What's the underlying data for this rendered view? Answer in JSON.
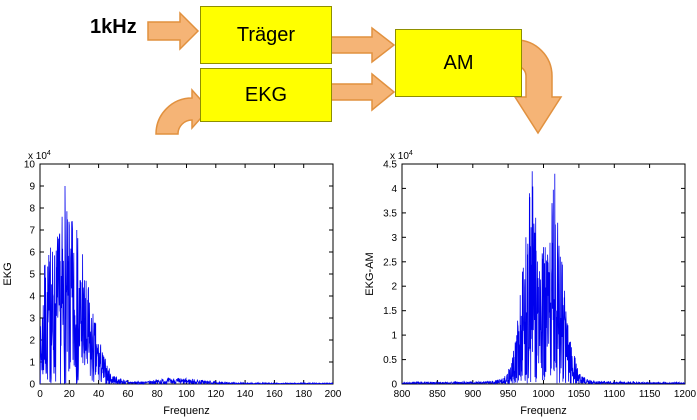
{
  "theme": {
    "bg": "#ffffff",
    "text": "#000000",
    "box-fill": "#ffff00",
    "box-border": "#8f8f00",
    "arrow-fill": "#f5b476",
    "arrow-border": "#e1913f"
  },
  "diagram": {
    "input_label": "1kHz",
    "blocks": {
      "traeger": "Träger",
      "ekg": "EKG",
      "am": "AM"
    }
  },
  "chart_data": [
    {
      "type": "line",
      "name": "ekg-spectrum",
      "title": "",
      "xlabel": "Frequenz",
      "ylabel": "EKG",
      "scale_label": "x 10",
      "scale_power": "4",
      "x_range": [
        0,
        200
      ],
      "y_range": [
        0,
        10
      ],
      "x_ticks": [
        0,
        20,
        40,
        60,
        80,
        100,
        120,
        140,
        160,
        180,
        200
      ],
      "y_ticks": [
        0,
        1,
        2,
        3,
        4,
        5,
        6,
        7,
        8,
        9,
        10
      ],
      "line_color": "#0000ee",
      "samples": 1100,
      "seed": 7,
      "noise_exp": 1.3,
      "floor": 0.02,
      "envelope": [
        [
          0,
          2.2
        ],
        [
          2,
          5.0
        ],
        [
          4,
          5.8
        ],
        [
          7,
          6.3
        ],
        [
          10,
          6.6
        ],
        [
          13,
          7.0
        ],
        [
          15,
          7.6
        ],
        [
          17,
          9.0
        ],
        [
          19,
          7.4
        ],
        [
          22,
          7.5
        ],
        [
          25,
          7.0
        ],
        [
          28,
          6.2
        ],
        [
          31,
          5.0
        ],
        [
          34,
          4.0
        ],
        [
          37,
          3.1
        ],
        [
          40,
          2.3
        ],
        [
          43,
          1.5
        ],
        [
          46,
          0.9
        ],
        [
          49,
          0.5
        ],
        [
          53,
          0.3
        ],
        [
          58,
          0.18
        ],
        [
          64,
          0.12
        ],
        [
          72,
          0.12
        ],
        [
          80,
          0.22
        ],
        [
          88,
          0.28
        ],
        [
          96,
          0.27
        ],
        [
          104,
          0.24
        ],
        [
          112,
          0.18
        ],
        [
          118,
          0.12
        ],
        [
          126,
          0.08
        ],
        [
          140,
          0.06
        ],
        [
          160,
          0.05
        ],
        [
          180,
          0.05
        ],
        [
          200,
          0.05
        ]
      ],
      "peaks": [
        [
          17,
          9.0
        ],
        [
          15,
          7.6
        ],
        [
          22,
          7.4
        ],
        [
          12,
          6.7
        ],
        [
          25,
          7.0
        ],
        [
          7,
          6.2
        ],
        [
          3,
          5.4
        ],
        [
          29,
          5.9
        ],
        [
          33,
          4.4
        ],
        [
          20,
          7.2
        ]
      ]
    },
    {
      "type": "line",
      "name": "ekg-am-spectrum",
      "title": "",
      "xlabel": "Frequenz",
      "ylabel": "EKG-AM",
      "scale_label": "x 10",
      "scale_power": "4",
      "x_range": [
        800,
        1200
      ],
      "y_range": [
        0,
        4.5
      ],
      "x_ticks": [
        800,
        850,
        900,
        950,
        1000,
        1050,
        1100,
        1150,
        1200
      ],
      "y_ticks": [
        0,
        0.5,
        1,
        1.5,
        2,
        2.5,
        3,
        3.5,
        4,
        4.5
      ],
      "line_color": "#0000ee",
      "samples": 1300,
      "seed": 13,
      "noise_exp": 1.3,
      "floor": 0.015,
      "envelope": [
        [
          800,
          0.04
        ],
        [
          860,
          0.04
        ],
        [
          900,
          0.05
        ],
        [
          925,
          0.06
        ],
        [
          938,
          0.1
        ],
        [
          948,
          0.2
        ],
        [
          956,
          0.55
        ],
        [
          962,
          1.2
        ],
        [
          967,
          1.9
        ],
        [
          972,
          2.6
        ],
        [
          977,
          3.2
        ],
        [
          981,
          3.9
        ],
        [
          984,
          4.35
        ],
        [
          988,
          3.6
        ],
        [
          993,
          3.0
        ],
        [
          1000,
          2.7
        ],
        [
          1006,
          3.0
        ],
        [
          1011,
          3.6
        ],
        [
          1016,
          4.3
        ],
        [
          1020,
          3.6
        ],
        [
          1025,
          2.7
        ],
        [
          1030,
          2.0
        ],
        [
          1036,
          1.3
        ],
        [
          1042,
          0.7
        ],
        [
          1048,
          0.35
        ],
        [
          1054,
          0.18
        ],
        [
          1062,
          0.1
        ],
        [
          1075,
          0.06
        ],
        [
          1100,
          0.05
        ],
        [
          1140,
          0.04
        ],
        [
          1200,
          0.03
        ]
      ],
      "peaks": [
        [
          984,
          4.35
        ],
        [
          1016,
          4.3
        ],
        [
          980,
          3.9
        ],
        [
          1012,
          3.7
        ],
        [
          989,
          3.4
        ],
        [
          1020,
          3.3
        ],
        [
          975,
          3.0
        ],
        [
          1000,
          2.8
        ],
        [
          970,
          2.3
        ],
        [
          1026,
          2.5
        ]
      ]
    }
  ]
}
